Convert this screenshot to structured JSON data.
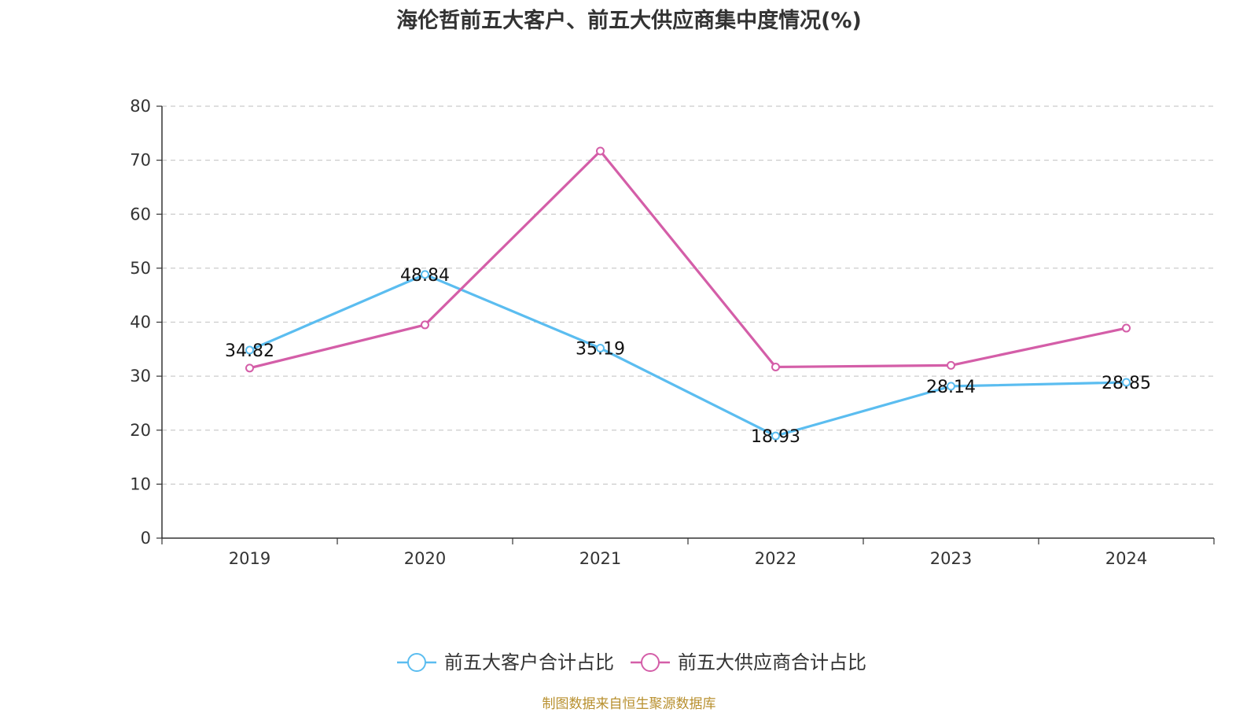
{
  "chart_data": {
    "type": "line",
    "title": "海伦哲前五大客户、前五大供应商集中度情况(%)",
    "categories": [
      "2019",
      "2020",
      "2021",
      "2022",
      "2023",
      "2024"
    ],
    "ylim": [
      0,
      80
    ],
    "yticks": [
      0,
      10,
      20,
      30,
      40,
      50,
      60,
      70,
      80
    ],
    "grid": true,
    "legend_position": "bottom",
    "series": [
      {
        "name": "前五大客户合计占比",
        "color": "#5bbdf0",
        "values": [
          34.82,
          48.84,
          35.19,
          18.93,
          28.14,
          28.85
        ],
        "labels": [
          "34.82",
          "48.84",
          "35.19",
          "18.93",
          "28.14",
          "28.85"
        ]
      },
      {
        "name": "前五大供应商合计占比",
        "color": "#d45ea8",
        "values": [
          31.5,
          39.5,
          71.7,
          31.7,
          32.0,
          38.9
        ]
      }
    ]
  },
  "source": "制图数据来自恒生聚源数据库"
}
